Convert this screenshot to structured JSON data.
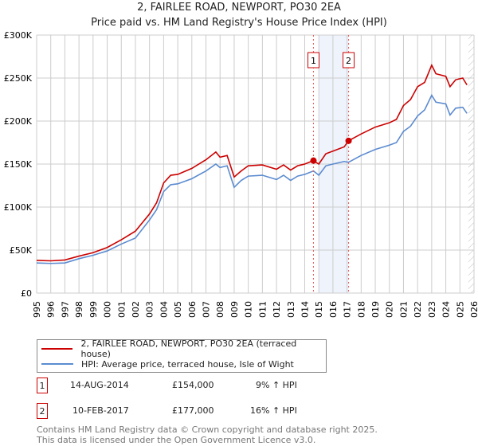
{
  "chart_data": {
    "type": "line",
    "title": "2, FAIRLEE ROAD, NEWPORT, PO30 2EA",
    "subtitle": "Price paid vs. HM Land Registry's House Price Index (HPI)",
    "xlim": [
      1995,
      2026
    ],
    "ylim": [
      0,
      300000
    ],
    "x_ticks": [
      "1995",
      "1996",
      "1997",
      "1998",
      "1999",
      "2000",
      "2001",
      "2002",
      "2003",
      "2004",
      "2005",
      "2006",
      "2007",
      "2008",
      "2009",
      "2010",
      "2011",
      "2012",
      "2013",
      "2014",
      "2015",
      "2016",
      "2017",
      "2018",
      "2019",
      "2020",
      "2021",
      "2022",
      "2023",
      "2024",
      "2025",
      "2026"
    ],
    "y_ticks": [
      {
        "v": 0,
        "label": "£0"
      },
      {
        "v": 50000,
        "label": "£50K"
      },
      {
        "v": 100000,
        "label": "£100K"
      },
      {
        "v": 150000,
        "label": "£150K"
      },
      {
        "v": 200000,
        "label": "£200K"
      },
      {
        "v": 250000,
        "label": "£250K"
      },
      {
        "v": 300000,
        "label": "£300K"
      }
    ],
    "grid": true,
    "shaded_range": [
      2015.0,
      2017.1
    ],
    "forecast_hatch_from": 2025.6,
    "series": [
      {
        "name": "2, FAIRLEE ROAD, NEWPORT, PO30 2EA (terraced house)",
        "color": "#cc0000",
        "x": [
          1995,
          1996,
          1997,
          1998,
          1999,
          2000,
          2001,
          2002,
          2003,
          2003.5,
          2004,
          2004.5,
          2005,
          2006,
          2007,
          2007.7,
          2008,
          2008.5,
          2009,
          2009.5,
          2010,
          2011,
          2012,
          2012.5,
          2013,
          2013.5,
          2014,
          2014.62,
          2015,
          2015.5,
          2016,
          2016.8,
          2017.1,
          2018,
          2019,
          2020,
          2020.5,
          2021,
          2021.5,
          2022,
          2022.5,
          2023,
          2023.3,
          2024,
          2024.3,
          2024.7,
          2025.2,
          2025.5
        ],
        "y": [
          38000,
          37500,
          38500,
          43000,
          47000,
          53000,
          62000,
          72000,
          92000,
          105000,
          128000,
          137000,
          138000,
          145000,
          155000,
          164000,
          158000,
          160000,
          135000,
          142000,
          148000,
          149000,
          144000,
          149000,
          143000,
          148000,
          150000,
          154000,
          150000,
          162000,
          165000,
          170000,
          177000,
          185000,
          193000,
          198000,
          202000,
          218000,
          225000,
          240000,
          245000,
          265000,
          255000,
          252000,
          240000,
          248000,
          250000,
          242000
        ]
      },
      {
        "name": "HPI: Average price, terraced house, Isle of Wight",
        "color": "#5b8bd0",
        "x": [
          1995,
          1996,
          1997,
          1998,
          1999,
          2000,
          2001,
          2002,
          2003,
          2003.5,
          2004,
          2004.5,
          2005,
          2006,
          2007,
          2007.7,
          2008,
          2008.5,
          2009,
          2009.5,
          2010,
          2011,
          2012,
          2012.5,
          2013,
          2013.5,
          2014,
          2014.62,
          2015,
          2015.5,
          2016,
          2016.8,
          2017.1,
          2018,
          2019,
          2020,
          2020.5,
          2021,
          2021.5,
          2022,
          2022.5,
          2023,
          2023.3,
          2024,
          2024.3,
          2024.7,
          2025.2,
          2025.5
        ],
        "y": [
          35000,
          34500,
          35000,
          40000,
          44000,
          49000,
          57000,
          64000,
          85000,
          97000,
          118000,
          126000,
          127000,
          133000,
          142000,
          150000,
          146000,
          148000,
          123000,
          131000,
          136000,
          137000,
          132000,
          137000,
          131000,
          136000,
          138000,
          142000,
          137000,
          148000,
          150000,
          153000,
          152000,
          160000,
          167000,
          172000,
          175000,
          188000,
          194000,
          206000,
          213000,
          230000,
          222000,
          220000,
          207000,
          215000,
          216000,
          209000
        ]
      }
    ],
    "sales": [
      {
        "id": "1",
        "x": 2014.62,
        "y": 154000,
        "date": "14-AUG-2014",
        "price": "£154,000",
        "hpi": "9% ↑ HPI"
      },
      {
        "id": "2",
        "x": 2017.11,
        "y": 177000,
        "date": "10-FEB-2017",
        "price": "£177,000",
        "hpi": "16% ↑ HPI"
      }
    ]
  },
  "footer": {
    "line1": "Contains HM Land Registry data © Crown copyright and database right 2025.",
    "line2": "This data is licensed under the Open Government Licence v3.0."
  }
}
